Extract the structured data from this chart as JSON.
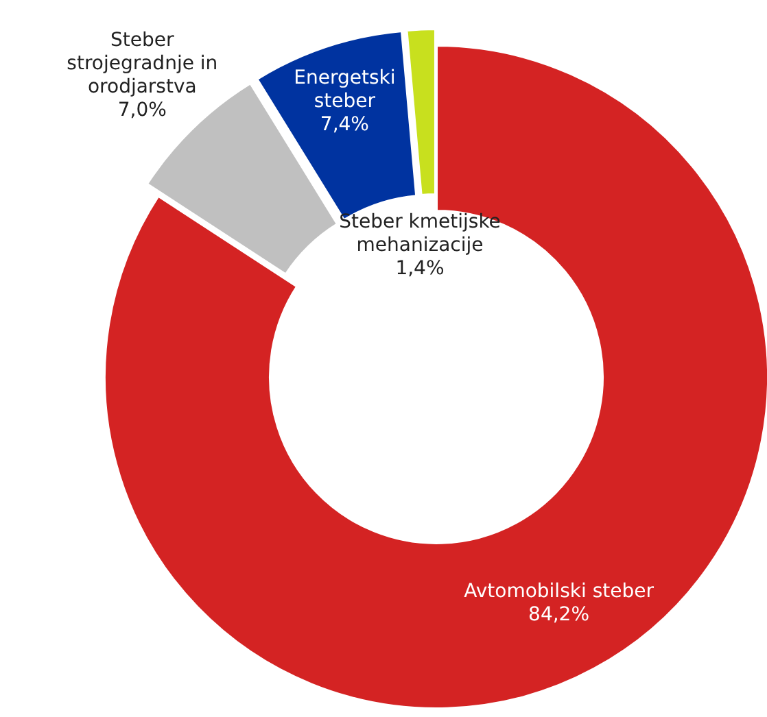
{
  "chart_data": {
    "type": "donut",
    "categories": [
      "Avtomobilski steber",
      "Steber\nstrojegradnje in\norodjarstva",
      "Energetski\nsteber",
      "Steber kmetijske\nmehanizacije"
    ],
    "values": [
      84.2,
      7.0,
      7.4,
      1.4
    ],
    "colors": [
      "#d42323",
      "#c0c0c0",
      "#0033a0",
      "#c8e01e"
    ],
    "value_labels": [
      "84,2%",
      "7,0%",
      "7,4%",
      "1,4%"
    ]
  }
}
